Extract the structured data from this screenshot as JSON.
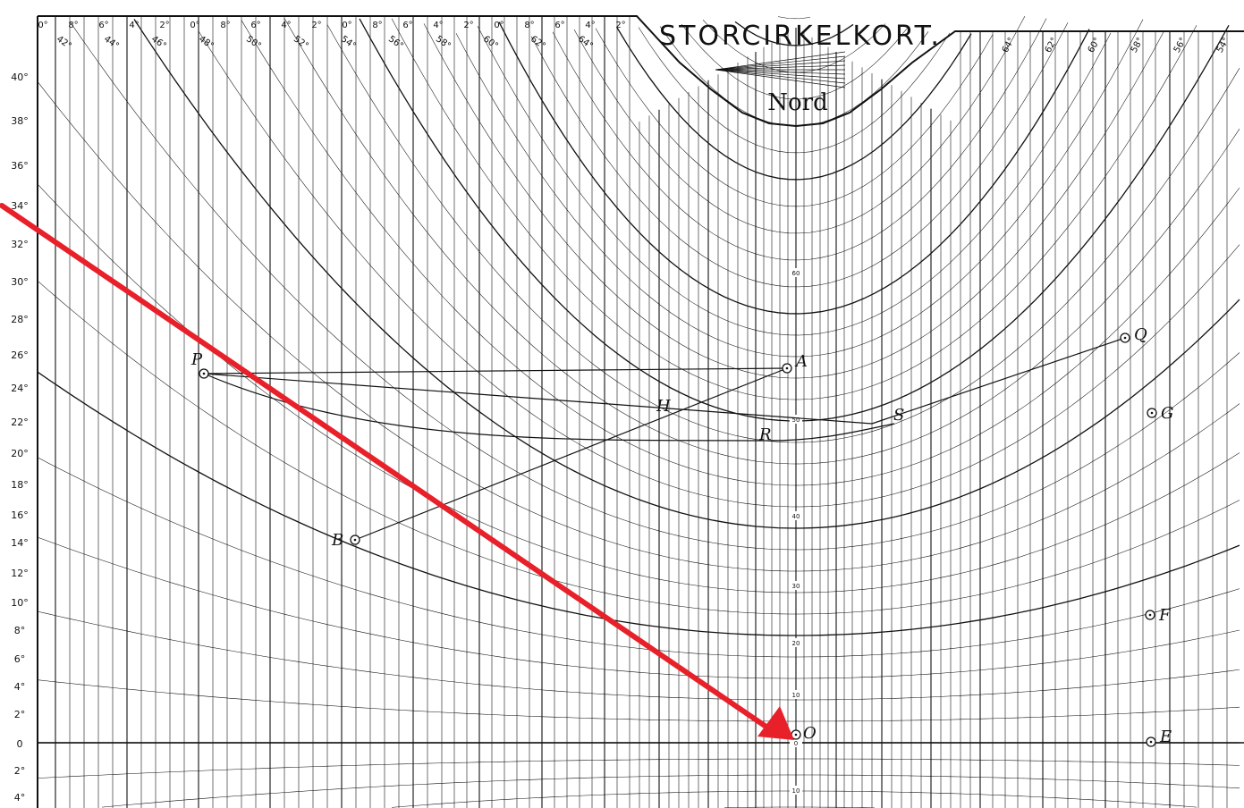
{
  "title": "STORCIRKELKORT.",
  "subtitle": "Nord",
  "left_scale_labels": [
    "40°",
    "38°",
    "36°",
    "34°",
    "32°",
    "30°",
    "28°",
    "26°",
    "24°",
    "22°",
    "20°",
    "18°",
    "16°",
    "14°",
    "12°",
    "10°",
    "8°",
    "6°",
    "4°",
    "2°",
    "0",
    "2°",
    "4°"
  ],
  "top_scale_labels": [
    "0°",
    "8°",
    "6°",
    "4°",
    "2°",
    "0°",
    "8°",
    "6°",
    "4°",
    "2°",
    "0°",
    "8°",
    "6°",
    "4°",
    "2°",
    "0°",
    "8°",
    "6°",
    "4°",
    "2°"
  ],
  "top_meridian_labels": [
    "42°",
    "44°",
    "46°",
    "48°",
    "50°",
    "52°",
    "54°",
    "56°",
    "58°",
    "60°",
    "62°",
    "64°"
  ],
  "top_right_labels": [
    "64°",
    "62°",
    "60°",
    "58°",
    "56°",
    "54°"
  ],
  "center_scale_labels": [
    "60",
    "50",
    "40",
    "30",
    "20",
    "10",
    "0",
    "10"
  ],
  "points": [
    {
      "name": "P"
    },
    {
      "name": "A"
    },
    {
      "name": "Q"
    },
    {
      "name": "H"
    },
    {
      "name": "R"
    },
    {
      "name": "S"
    },
    {
      "name": "G"
    },
    {
      "name": "B"
    },
    {
      "name": "F"
    },
    {
      "name": "O"
    },
    {
      "name": "E"
    }
  ],
  "colors": {
    "ink": "#111111",
    "paper": "#ffffff",
    "arrow": "#e8202a"
  }
}
